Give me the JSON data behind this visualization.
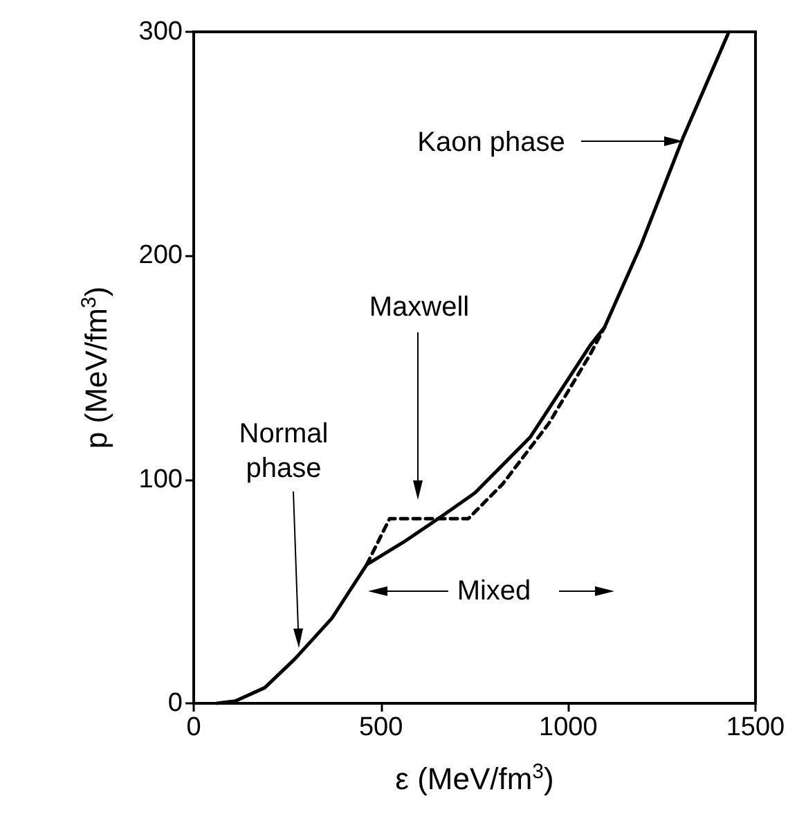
{
  "chart_data": {
    "type": "line",
    "xlabel": "ε (MeV/fm$^{3}$)",
    "ylabel": "p (MeV/fm$^{3}$)",
    "xlim": [
      0,
      1500
    ],
    "xticks": [
      0,
      500,
      1000,
      1500
    ],
    "ylim": [
      0,
      300
    ],
    "yticks": [
      0,
      100,
      200,
      300
    ],
    "grid": false,
    "marker": "none",
    "series": [
      {
        "color": "#000000",
        "line_style": "solid",
        "x": [
          62,
          111,
          190,
          271,
          369,
          462,
          560,
          653,
          751,
          899,
          1059,
          1097,
          1195,
          1306,
          1429
        ],
        "values": [
          0,
          1,
          7,
          20,
          38,
          62,
          72,
          82.5,
          94,
          119,
          160,
          168,
          205,
          252.5,
          300
        ]
      },
      {
        "color": "#000000",
        "line_style": "dashed",
        "x": [
          462,
          523,
          733,
          825,
          948,
          1059,
          1097
        ],
        "values": [
          62,
          82.5,
          82.5,
          98,
          125,
          156,
          168
        ]
      }
    ],
    "annotations": [
      "Normal\nphase",
      "Maxwell",
      "Mixed",
      "Kaon phase"
    ]
  }
}
